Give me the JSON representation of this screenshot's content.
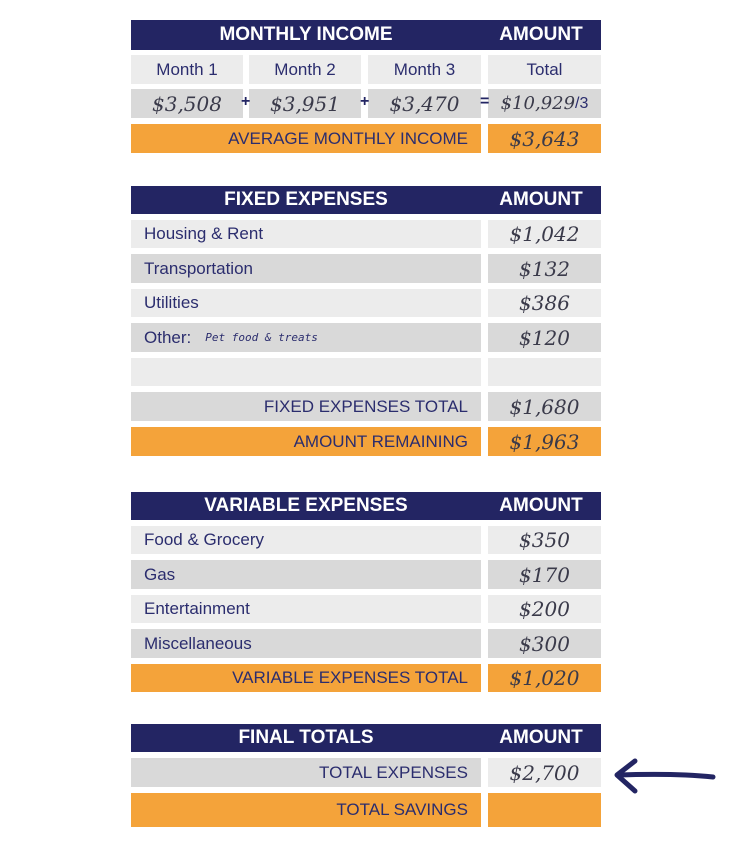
{
  "monthly_income": {
    "title": "MONTHLY INCOME",
    "amount_header": "AMOUNT",
    "columns": [
      "Month 1",
      "Month 2",
      "Month 3",
      "Total"
    ],
    "values": [
      "$3,508",
      "$3,951",
      "$3,470",
      "$10,929"
    ],
    "operators": [
      "+",
      "+",
      "="
    ],
    "divisor": "/3",
    "average": {
      "label": "AVERAGE MONTHLY INCOME",
      "amount": "$3,643"
    }
  },
  "fixed_expenses": {
    "title": "FIXED EXPENSES",
    "amount_header": "AMOUNT",
    "rows": [
      {
        "label": "Housing & Rent",
        "amount": "$1,042"
      },
      {
        "label": "Transportation",
        "amount": "$132"
      },
      {
        "label": "Utilities",
        "amount": "$386"
      },
      {
        "label": "Other:",
        "note": "Pet food & treats",
        "amount": "$120"
      }
    ],
    "total": {
      "label": "FIXED EXPENSES TOTAL",
      "amount": "$1,680"
    },
    "remaining": {
      "label": "AMOUNT REMAINING",
      "amount": "$1,963"
    }
  },
  "variable_expenses": {
    "title": "VARIABLE EXPENSES",
    "amount_header": "AMOUNT",
    "rows": [
      {
        "label": "Food & Grocery",
        "amount": "$350"
      },
      {
        "label": "Gas",
        "amount": "$170"
      },
      {
        "label": "Entertainment",
        "amount": "$200"
      },
      {
        "label": "Miscellaneous",
        "amount": "$300"
      }
    ],
    "total": {
      "label": "VARIABLE EXPENSES TOTAL",
      "amount": "$1,020"
    }
  },
  "final_totals": {
    "title": "FINAL TOTALS",
    "amount_header": "AMOUNT",
    "total_expenses": {
      "label": "TOTAL EXPENSES",
      "amount": "$2,700"
    },
    "total_savings": {
      "label": "TOTAL SAVINGS"
    }
  }
}
